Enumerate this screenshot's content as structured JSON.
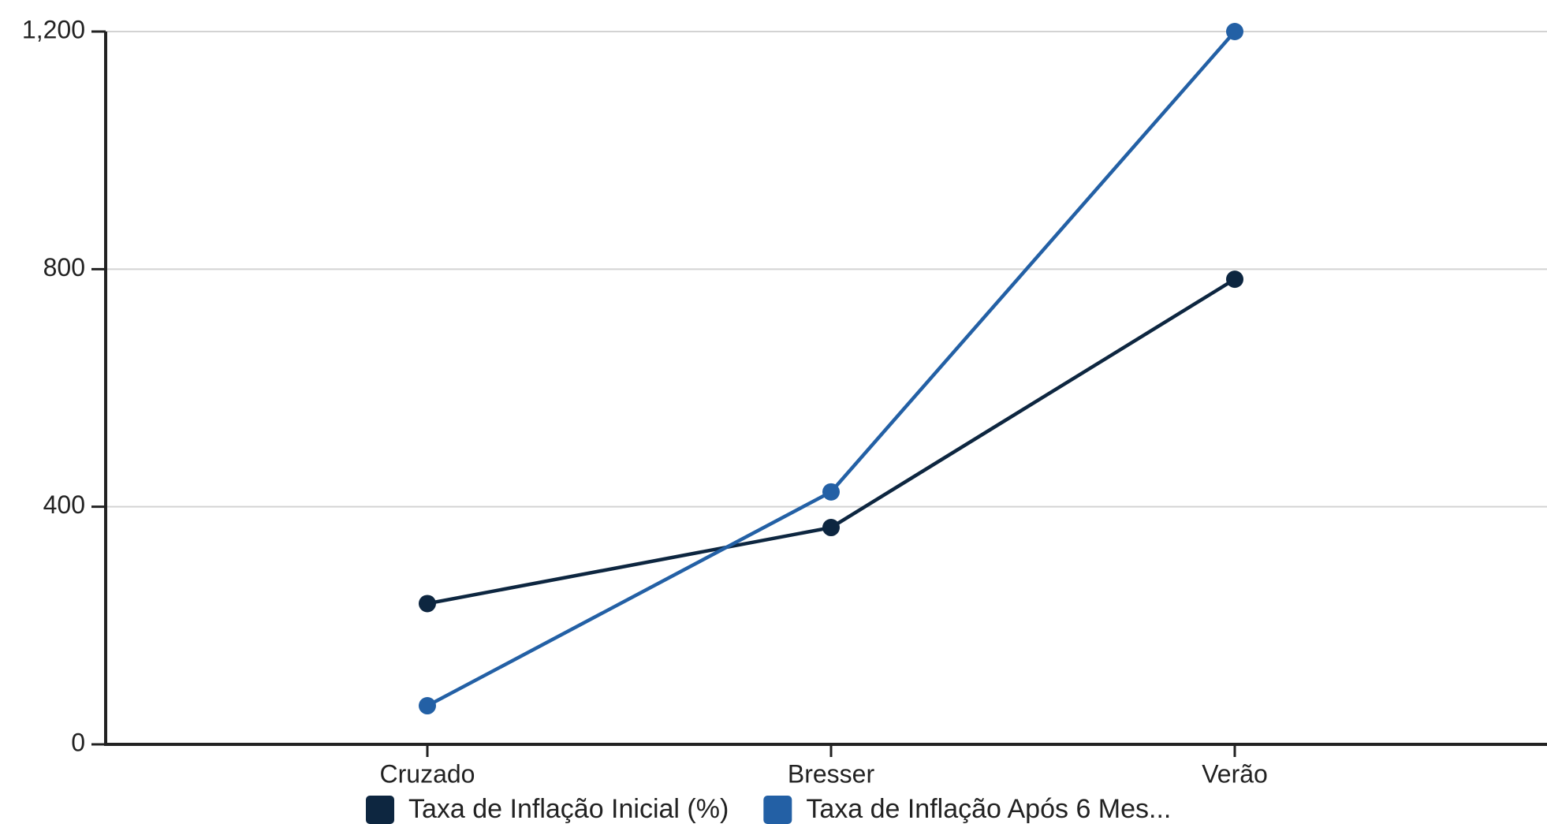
{
  "chart_data": {
    "type": "line",
    "categories": [
      "Cruzado",
      "Bresser",
      "Verão"
    ],
    "series": [
      {
        "name": "Taxa de Inflação Inicial (%)",
        "color": "#0d2640",
        "values": [
          237,
          365,
          783
        ]
      },
      {
        "name": "Taxa de Inflação Após 6 Mes...",
        "color": "#2360a5",
        "values": [
          65,
          425,
          1200
        ]
      }
    ],
    "ylim": [
      0,
      1200
    ],
    "yticks": [
      0,
      400,
      800,
      1200
    ],
    "ytick_labels": [
      "0",
      "400",
      "800",
      "1,200"
    ],
    "grid": true,
    "legend_position": "bottom",
    "title": "",
    "xlabel": "",
    "ylabel": ""
  }
}
